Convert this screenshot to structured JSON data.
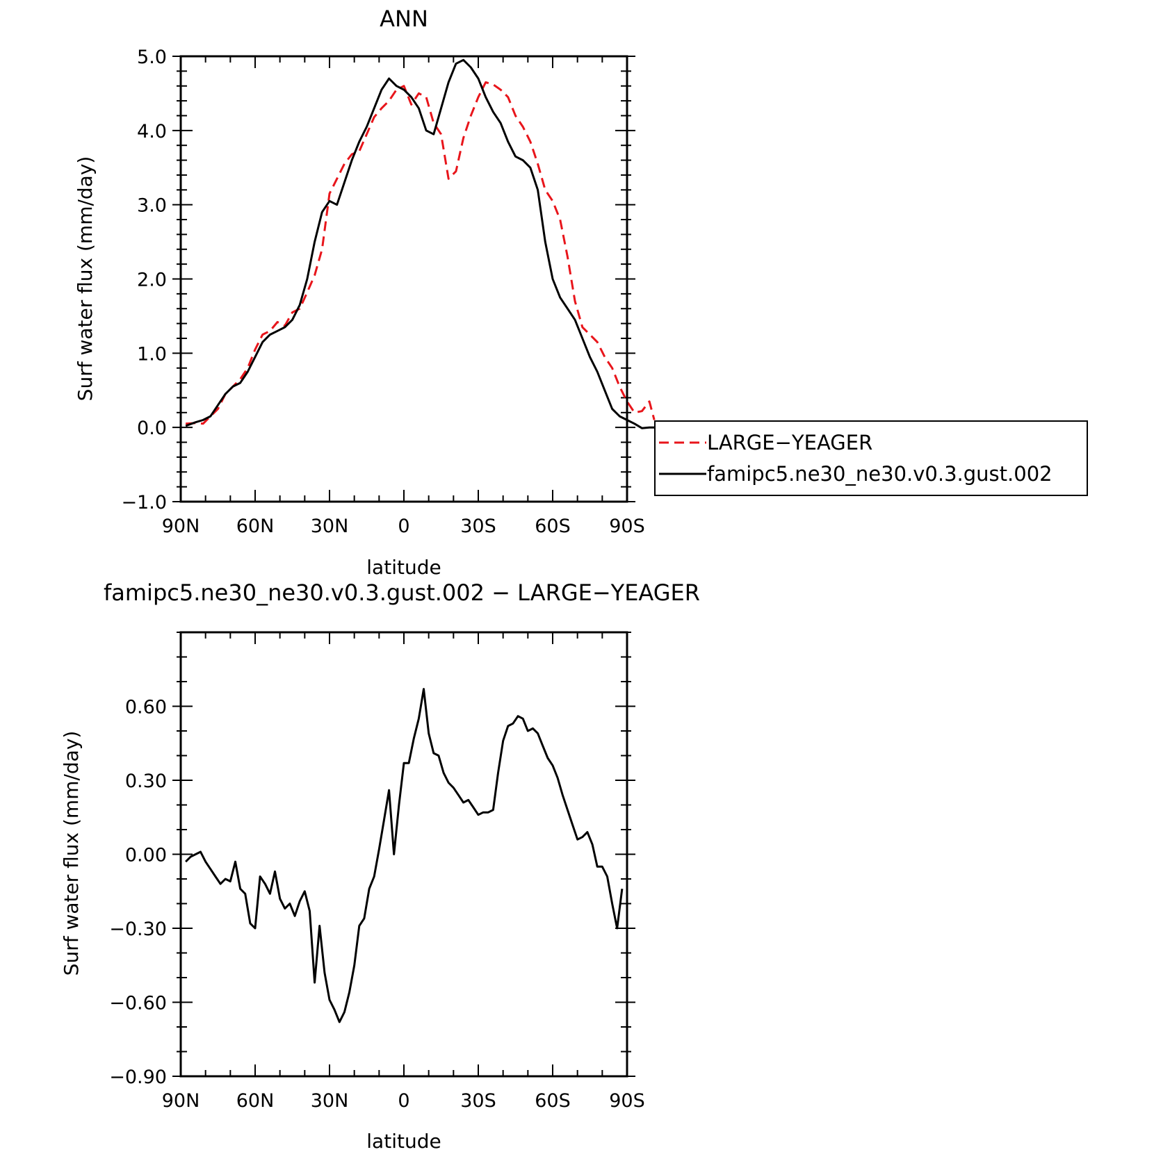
{
  "chart_data": [
    {
      "type": "line",
      "title": "ANN",
      "xlabel": "latitude",
      "ylabel": "Surf water flux (mm/day)",
      "xlim": [
        90,
        -90
      ],
      "ylim": [
        -1.0,
        5.0
      ],
      "xticks": [
        90,
        60,
        30,
        0,
        -30,
        -60,
        -90
      ],
      "xtick_labels": [
        "90N",
        "60N",
        "30N",
        "0",
        "30S",
        "60S",
        "90S"
      ],
      "yticks": [
        -1.0,
        0.0,
        1.0,
        2.0,
        3.0,
        4.0,
        5.0
      ],
      "ytick_labels": [
        "−1.0",
        "0.0",
        "1.0",
        "2.0",
        "3.0",
        "4.0",
        "5.0"
      ],
      "legend_placement": "right",
      "series": [
        {
          "name": "LARGE−YEAGER",
          "color": "#e8151b",
          "dash": "dashed",
          "points": [
            [
              88,
              0.05
            ],
            [
              84,
              0.06
            ],
            [
              81,
              0.05
            ],
            [
              78,
              0.15
            ],
            [
              75,
              0.25
            ],
            [
              72,
              0.45
            ],
            [
              69,
              0.55
            ],
            [
              66,
              0.65
            ],
            [
              63,
              0.8
            ],
            [
              60,
              1.05
            ],
            [
              57,
              1.25
            ],
            [
              54,
              1.3
            ],
            [
              51,
              1.42
            ],
            [
              48,
              1.37
            ],
            [
              45,
              1.55
            ],
            [
              42,
              1.6
            ],
            [
              39,
              1.82
            ],
            [
              36,
              2.05
            ],
            [
              33,
              2.4
            ],
            [
              30,
              3.15
            ],
            [
              27,
              3.35
            ],
            [
              24,
              3.55
            ],
            [
              21,
              3.68
            ],
            [
              18,
              3.72
            ],
            [
              15,
              3.95
            ],
            [
              12,
              4.18
            ],
            [
              9,
              4.3
            ],
            [
              6,
              4.4
            ],
            [
              3,
              4.55
            ],
            [
              0,
              4.6
            ],
            [
              -3,
              4.35
            ],
            [
              -6,
              4.5
            ],
            [
              -9,
              4.45
            ],
            [
              -12,
              4.1
            ],
            [
              -15,
              3.95
            ],
            [
              -18,
              3.35
            ],
            [
              -21,
              3.45
            ],
            [
              -24,
              3.9
            ],
            [
              -27,
              4.2
            ],
            [
              -30,
              4.45
            ],
            [
              -33,
              4.65
            ],
            [
              -36,
              4.62
            ],
            [
              -39,
              4.55
            ],
            [
              -42,
              4.45
            ],
            [
              -45,
              4.2
            ],
            [
              -48,
              4.05
            ],
            [
              -51,
              3.85
            ],
            [
              -54,
              3.55
            ],
            [
              -57,
              3.2
            ],
            [
              -60,
              3.05
            ],
            [
              -63,
              2.8
            ],
            [
              -66,
              2.3
            ],
            [
              -69,
              1.7
            ],
            [
              -72,
              1.35
            ],
            [
              -75,
              1.25
            ],
            [
              -78,
              1.15
            ],
            [
              -81,
              0.95
            ],
            [
              -84,
              0.8
            ],
            [
              -87,
              0.55
            ],
            [
              -90,
              0.35
            ],
            [
              -93,
              0.2
            ],
            [
              -96,
              0.22
            ],
            [
              -99,
              0.35
            ],
            [
              -101,
              0.1
            ]
          ]
        },
        {
          "name": "famipc5.ne30_ne30.v0.3.gust.002",
          "color": "#000000",
          "dash": "solid",
          "points": [
            [
              88,
              0.02
            ],
            [
              84,
              0.07
            ],
            [
              81,
              0.1
            ],
            [
              78,
              0.15
            ],
            [
              75,
              0.3
            ],
            [
              72,
              0.45
            ],
            [
              69,
              0.55
            ],
            [
              66,
              0.6
            ],
            [
              63,
              0.75
            ],
            [
              60,
              0.95
            ],
            [
              57,
              1.15
            ],
            [
              54,
              1.25
            ],
            [
              51,
              1.3
            ],
            [
              48,
              1.35
            ],
            [
              45,
              1.45
            ],
            [
              42,
              1.65
            ],
            [
              39,
              2.0
            ],
            [
              36,
              2.5
            ],
            [
              33,
              2.9
            ],
            [
              30,
              3.05
            ],
            [
              27,
              3.0
            ],
            [
              24,
              3.3
            ],
            [
              21,
              3.6
            ],
            [
              18,
              3.85
            ],
            [
              15,
              4.05
            ],
            [
              12,
              4.3
            ],
            [
              9,
              4.55
            ],
            [
              6,
              4.7
            ],
            [
              3,
              4.6
            ],
            [
              0,
              4.55
            ],
            [
              -3,
              4.45
            ],
            [
              -6,
              4.3
            ],
            [
              -9,
              4.0
            ],
            [
              -12,
              3.95
            ],
            [
              -15,
              4.3
            ],
            [
              -18,
              4.65
            ],
            [
              -21,
              4.9
            ],
            [
              -24,
              4.95
            ],
            [
              -27,
              4.85
            ],
            [
              -30,
              4.7
            ],
            [
              -33,
              4.45
            ],
            [
              -36,
              4.25
            ],
            [
              -39,
              4.1
            ],
            [
              -42,
              3.85
            ],
            [
              -45,
              3.65
            ],
            [
              -48,
              3.6
            ],
            [
              -51,
              3.5
            ],
            [
              -54,
              3.2
            ],
            [
              -57,
              2.5
            ],
            [
              -60,
              2.0
            ],
            [
              -63,
              1.75
            ],
            [
              -66,
              1.6
            ],
            [
              -69,
              1.45
            ],
            [
              -72,
              1.2
            ],
            [
              -75,
              0.95
            ],
            [
              -78,
              0.75
            ],
            [
              -81,
              0.5
            ],
            [
              -84,
              0.25
            ],
            [
              -87,
              0.15
            ],
            [
              -90,
              0.1
            ],
            [
              -93,
              0.05
            ],
            [
              -96,
              -0.01
            ],
            [
              -99,
              0.0
            ],
            [
              -102,
              0.0
            ],
            [
              -105,
              -0.01
            ]
          ]
        }
      ]
    },
    {
      "type": "line",
      "title": "famipc5.ne30_ne30.v0.3.gust.002 − LARGE−YEAGER",
      "xlabel": "latitude",
      "ylabel": "Surf water flux (mm/day)",
      "xlim": [
        90,
        -90
      ],
      "ylim": [
        -0.9,
        0.9
      ],
      "xticks": [
        90,
        60,
        30,
        0,
        -30,
        -60,
        -90
      ],
      "xtick_labels": [
        "90N",
        "60N",
        "30N",
        "0",
        "30S",
        "60S",
        "90S"
      ],
      "yticks": [
        -0.9,
        -0.6,
        -0.3,
        0.0,
        0.3,
        0.6
      ],
      "ytick_labels": [
        "−0.90",
        "−0.60",
        "−0.30",
        "0.00",
        "0.30",
        "0.60"
      ],
      "series": [
        {
          "color": "#000000",
          "dash": "solid",
          "points": [
            [
              88,
              -0.03
            ],
            [
              86,
              -0.01
            ],
            [
              84,
              0.0
            ],
            [
              82,
              0.01
            ],
            [
              80,
              -0.03
            ],
            [
              78,
              -0.06
            ],
            [
              76,
              -0.09
            ],
            [
              74,
              -0.12
            ],
            [
              72,
              -0.1
            ],
            [
              70,
              -0.11
            ],
            [
              68,
              -0.03
            ],
            [
              66,
              -0.14
            ],
            [
              64,
              -0.16
            ],
            [
              62,
              -0.28
            ],
            [
              60,
              -0.3
            ],
            [
              58,
              -0.09
            ],
            [
              56,
              -0.12
            ],
            [
              54,
              -0.16
            ],
            [
              52,
              -0.07
            ],
            [
              50,
              -0.18
            ],
            [
              48,
              -0.22
            ],
            [
              46,
              -0.2
            ],
            [
              44,
              -0.25
            ],
            [
              42,
              -0.19
            ],
            [
              40,
              -0.15
            ],
            [
              38,
              -0.23
            ],
            [
              36,
              -0.52
            ],
            [
              34,
              -0.29
            ],
            [
              32,
              -0.48
            ],
            [
              30,
              -0.59
            ],
            [
              28,
              -0.63
            ],
            [
              26,
              -0.68
            ],
            [
              24,
              -0.64
            ],
            [
              22,
              -0.56
            ],
            [
              20,
              -0.45
            ],
            [
              18,
              -0.29
            ],
            [
              16,
              -0.26
            ],
            [
              14,
              -0.14
            ],
            [
              12,
              -0.09
            ],
            [
              10,
              0.02
            ],
            [
              8,
              0.14
            ],
            [
              6,
              0.26
            ],
            [
              4,
              0.0
            ],
            [
              2,
              0.2
            ],
            [
              0,
              0.37
            ],
            [
              -2,
              0.37
            ],
            [
              -4,
              0.47
            ],
            [
              -6,
              0.55
            ],
            [
              -8,
              0.67
            ],
            [
              -10,
              0.49
            ],
            [
              -12,
              0.41
            ],
            [
              -14,
              0.4
            ],
            [
              -16,
              0.33
            ],
            [
              -18,
              0.29
            ],
            [
              -20,
              0.27
            ],
            [
              -22,
              0.24
            ],
            [
              -24,
              0.21
            ],
            [
              -26,
              0.22
            ],
            [
              -28,
              0.19
            ],
            [
              -30,
              0.16
            ],
            [
              -32,
              0.17
            ],
            [
              -34,
              0.17
            ],
            [
              -36,
              0.18
            ],
            [
              -38,
              0.33
            ],
            [
              -40,
              0.46
            ],
            [
              -42,
              0.52
            ],
            [
              -44,
              0.53
            ],
            [
              -46,
              0.56
            ],
            [
              -48,
              0.55
            ],
            [
              -50,
              0.5
            ],
            [
              -52,
              0.51
            ],
            [
              -54,
              0.49
            ],
            [
              -56,
              0.44
            ],
            [
              -58,
              0.39
            ],
            [
              -60,
              0.36
            ],
            [
              -62,
              0.31
            ],
            [
              -64,
              0.24
            ],
            [
              -66,
              0.18
            ],
            [
              -68,
              0.12
            ],
            [
              -70,
              0.06
            ],
            [
              -72,
              0.07
            ],
            [
              -74,
              0.09
            ],
            [
              -76,
              0.04
            ],
            [
              -78,
              -0.05
            ],
            [
              -80,
              -0.05
            ],
            [
              -82,
              -0.09
            ],
            [
              -84,
              -0.2
            ],
            [
              -86,
              -0.3
            ],
            [
              -88,
              -0.14
            ]
          ]
        }
      ]
    }
  ]
}
